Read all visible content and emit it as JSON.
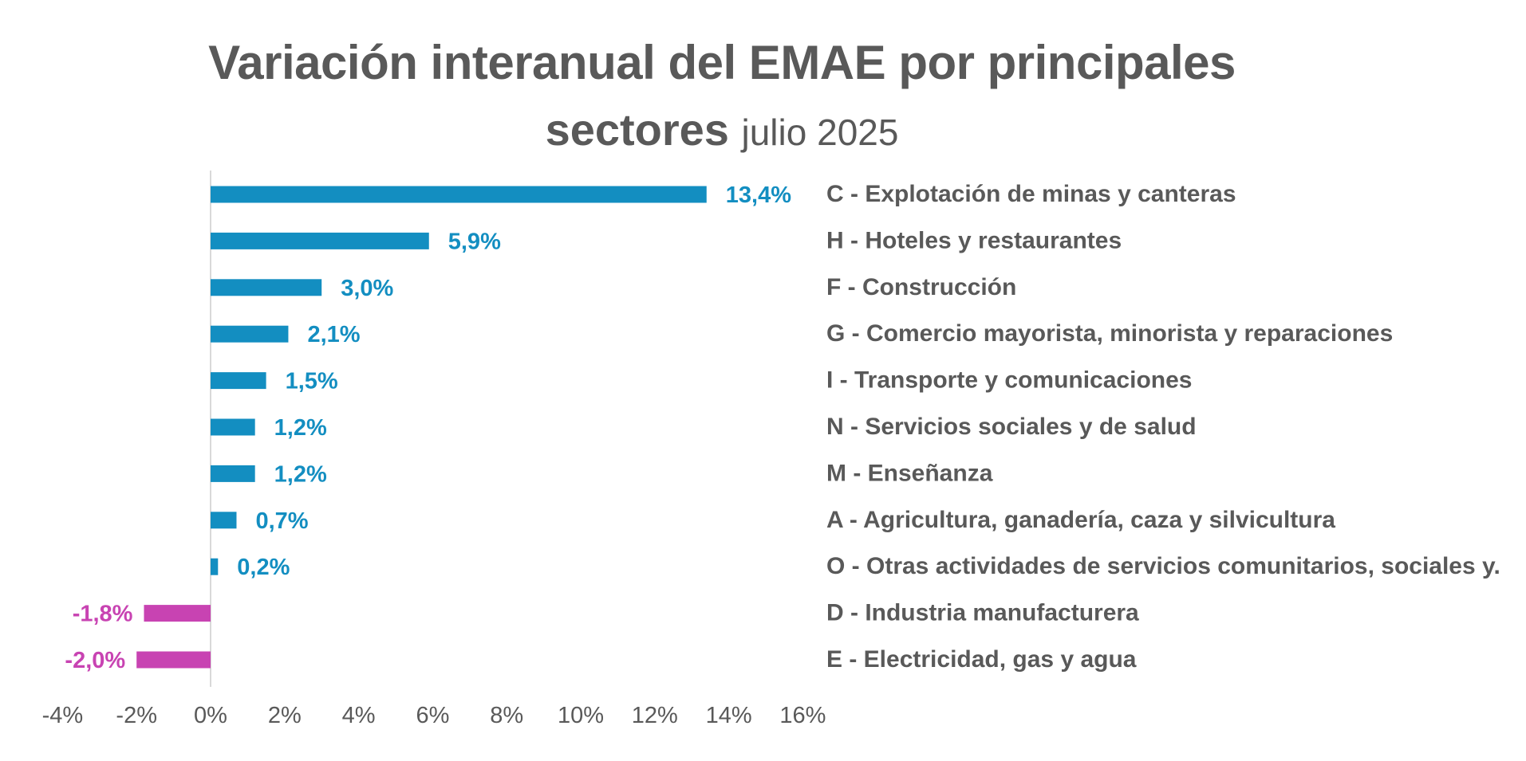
{
  "title": {
    "line1": "Variación interanual del EMAE por principales",
    "line2_bold": "sectores",
    "line2_regular": "julio 2025"
  },
  "colors": {
    "positive": "#138EC1",
    "negative": "#C843B2",
    "text": "#595959",
    "axis": "#D9D9D9"
  },
  "chart_data": {
    "type": "bar",
    "orientation": "horizontal",
    "title": "Variación interanual del EMAE por principales sectores julio 2025",
    "xlabel": "",
    "ylabel": "",
    "xlim": [
      -4,
      16
    ],
    "x_ticks": [
      -4,
      -2,
      0,
      2,
      4,
      6,
      8,
      10,
      12,
      14,
      16
    ],
    "x_tick_labels": [
      "-4%",
      "-2%",
      "0%",
      "2%",
      "4%",
      "6%",
      "8%",
      "10%",
      "12%",
      "14%",
      "16%"
    ],
    "grid": false,
    "legend": "none",
    "categories": [
      "C - Explotación de minas y canteras",
      "H - Hoteles y restaurantes",
      "F - Construcción",
      "G - Comercio mayorista, minorista y reparaciones",
      "I - Transporte y comunicaciones",
      "N - Servicios sociales y de salud",
      "M - Enseñanza",
      "A -  Agricultura, ganadería, caza y silvicultura",
      "O - Otras actividades de servicios comunitarios, sociales y.",
      "D - Industria manufacturera",
      "E - Electricidad, gas y agua"
    ],
    "values": [
      13.4,
      5.9,
      3.0,
      2.1,
      1.5,
      1.2,
      1.2,
      0.7,
      0.2,
      -1.8,
      -2.0
    ],
    "value_labels": [
      "13,4%",
      "5,9%",
      "3,0%",
      "2,1%",
      "1,5%",
      "1,2%",
      "1,2%",
      "0,7%",
      "0,2%",
      "-1,8%",
      "-2,0%"
    ]
  }
}
